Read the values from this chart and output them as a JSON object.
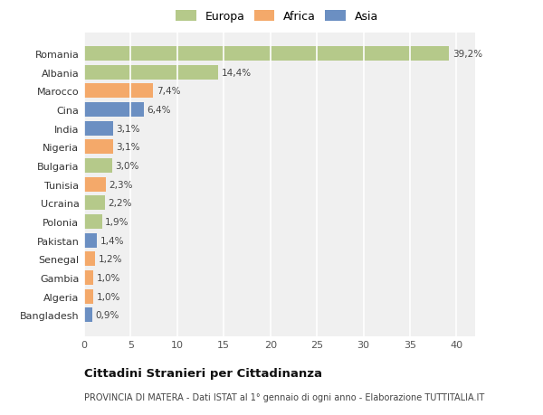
{
  "categories": [
    "Bangladesh",
    "Algeria",
    "Gambia",
    "Senegal",
    "Pakistan",
    "Polonia",
    "Ucraina",
    "Tunisia",
    "Bulgaria",
    "Nigeria",
    "India",
    "Cina",
    "Marocco",
    "Albania",
    "Romania"
  ],
  "values": [
    0.9,
    1.0,
    1.0,
    1.2,
    1.4,
    1.9,
    2.2,
    2.3,
    3.0,
    3.1,
    3.1,
    6.4,
    7.4,
    14.4,
    39.2
  ],
  "labels": [
    "0,9%",
    "1,0%",
    "1,0%",
    "1,2%",
    "1,4%",
    "1,9%",
    "2,2%",
    "2,3%",
    "3,0%",
    "3,1%",
    "3,1%",
    "6,4%",
    "7,4%",
    "14,4%",
    "39,2%"
  ],
  "colors": [
    "#6b8fc2",
    "#f4a96a",
    "#f4a96a",
    "#f4a96a",
    "#6b8fc2",
    "#b5c98a",
    "#b5c98a",
    "#f4a96a",
    "#b5c98a",
    "#f4a96a",
    "#6b8fc2",
    "#6b8fc2",
    "#f4a96a",
    "#b5c98a",
    "#b5c98a"
  ],
  "legend_labels": [
    "Europa",
    "Africa",
    "Asia"
  ],
  "legend_colors": [
    "#b5c98a",
    "#f4a96a",
    "#6b8fc2"
  ],
  "title": "Cittadini Stranieri per Cittadinanza",
  "subtitle": "PROVINCIA DI MATERA - Dati ISTAT al 1° gennaio di ogni anno - Elaborazione TUTTITALIA.IT",
  "xlim": [
    0,
    42
  ],
  "xticks": [
    0,
    5,
    10,
    15,
    20,
    25,
    30,
    35,
    40
  ],
  "figure_bg": "#ffffff",
  "axes_bg": "#f0f0f0",
  "grid_color": "#ffffff"
}
